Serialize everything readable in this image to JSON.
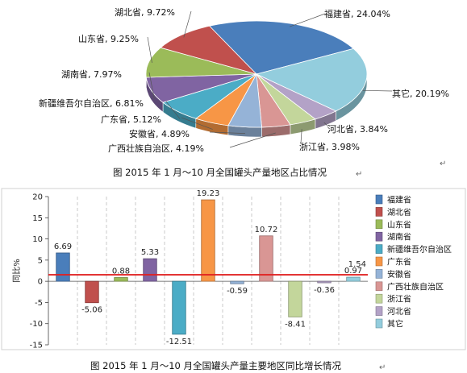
{
  "chart_data": [
    {
      "type": "pie",
      "title": "图 2015年1月～10月全国罐头产量地区占比情况",
      "slices": [
        {
          "name": "福建省",
          "label": "福建省, 24.04%",
          "value": 24.04,
          "color": "#4a7ebb"
        },
        {
          "name": "其它",
          "label": "其它, 20.19%",
          "value": 20.19,
          "color": "#93cddd"
        },
        {
          "name": "河北省",
          "label": "河北省, 3.84%",
          "value": 3.84,
          "color": "#b3a2c7"
        },
        {
          "name": "浙江省",
          "label": "浙江省, 3.98%",
          "value": 3.98,
          "color": "#c3d69b"
        },
        {
          "name": "广西壮族自治区",
          "label": "广西壮族自治区, 4.19%",
          "value": 4.19,
          "color": "#d99694"
        },
        {
          "name": "安徽省",
          "label": "安徽省, 4.89%",
          "value": 4.89,
          "color": "#95b3d7"
        },
        {
          "name": "广东省",
          "label": "广东省, 5.12%",
          "value": 5.12,
          "color": "#f79646"
        },
        {
          "name": "新疆维吾尔自治区",
          "label": "新疆维吾尔自治区, 6.81%",
          "value": 6.81,
          "color": "#4bacc6"
        },
        {
          "name": "湖南省",
          "label": "湖南省, 7.97%",
          "value": 7.97,
          "color": "#8064a2"
        },
        {
          "name": "山东省",
          "label": "山东省, 9.25%",
          "value": 9.25,
          "color": "#9bbb59"
        },
        {
          "name": "湖北省",
          "label": "湖北省, 9.72%",
          "value": 9.72,
          "color": "#c0504d"
        }
      ]
    },
    {
      "type": "bar",
      "title": "图 2015年1月～10月全国罐头产量主要地区同比增长情况",
      "ylabel": "同比%",
      "ylim": [
        -15,
        20
      ],
      "yticks": [
        "20",
        "15",
        "10",
        "5",
        "0",
        "-5",
        "-10",
        "-15"
      ],
      "reference_line": {
        "value": 1.54,
        "label": "1.54",
        "color": "#e02020"
      },
      "categories": [
        "福建省",
        "湖北省",
        "山东省",
        "湖南省",
        "新疆维吾尔自治区",
        "广东省",
        "安徽省",
        "广西壮族自治区",
        "浙江省",
        "河北省",
        "其它"
      ],
      "values": [
        6.69,
        -5.06,
        0.88,
        5.33,
        -12.51,
        19.23,
        -0.59,
        10.72,
        -8.41,
        -0.36,
        0.97
      ],
      "data_labels": [
        "6.69",
        "-5.06",
        "0.88",
        "5.33",
        "-12.51",
        "19.23",
        "-0.59",
        "10.72",
        "-8.41",
        "-0.36",
        "0.97"
      ],
      "colors": [
        "#4a7ebb",
        "#c0504d",
        "#9bbb59",
        "#8064a2",
        "#4bacc6",
        "#f79646",
        "#95b3d7",
        "#d99694",
        "#c3d69b",
        "#b3a2c7",
        "#93cddd"
      ],
      "legend": [
        "福建省",
        "湖北省",
        "山东省",
        "湖南省",
        "新疆维吾尔自治区",
        "广东省",
        "安徽省",
        "广西壮族自治区",
        "浙江省",
        "河北省",
        "其它"
      ],
      "legend_position": "right",
      "grid": "vertical dashed"
    }
  ],
  "captions": {
    "pie": "图    2015 年 1 月～10 月全国罐头产量地区占比情况",
    "bar": "图    2015 年 1 月～10 月全国罐头产量主要地区同比增长情况"
  },
  "edit_mark": "↵"
}
